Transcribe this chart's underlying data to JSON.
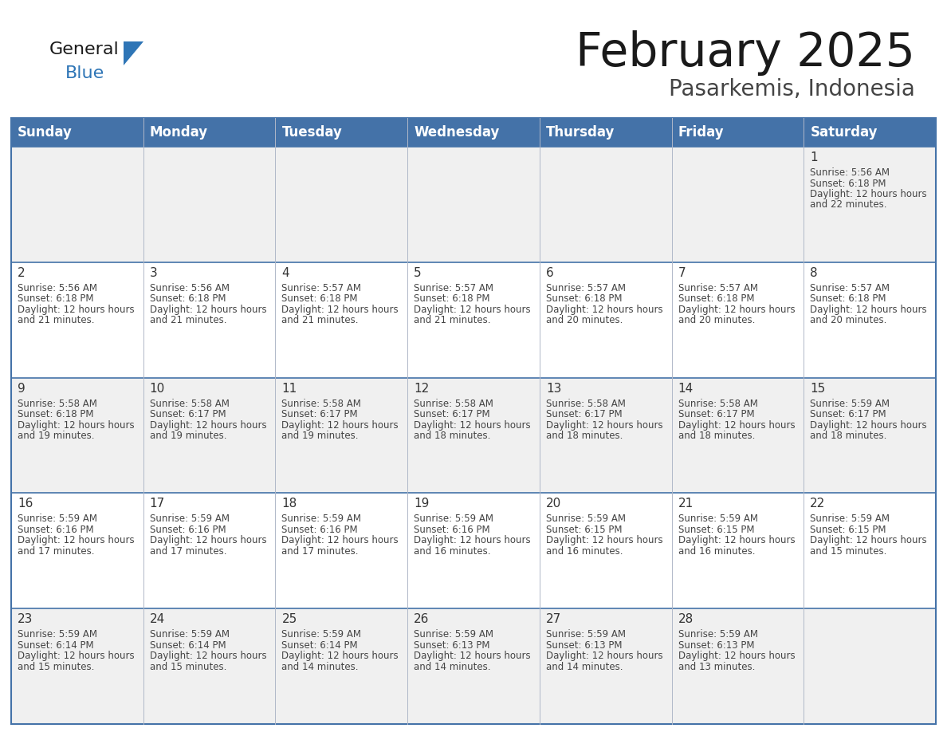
{
  "title": "February 2025",
  "subtitle": "Pasarkemis, Indonesia",
  "header_bg": "#4472a8",
  "header_text": "#ffffff",
  "day_names": [
    "Sunday",
    "Monday",
    "Tuesday",
    "Wednesday",
    "Thursday",
    "Friday",
    "Saturday"
  ],
  "row_bg_even": "#f0f0f0",
  "row_bg_odd": "#ffffff",
  "cell_border": "#4472a8",
  "date_color": "#333333",
  "info_color": "#444444",
  "logo_general_color": "#1a1a1a",
  "logo_blue_color": "#2e75b6",
  "calendar_data": [
    {
      "day": 1,
      "col": 6,
      "row": 0,
      "sunrise": "5:56 AM",
      "sunset": "6:18 PM",
      "daylight": "12 hours and 22 minutes"
    },
    {
      "day": 2,
      "col": 0,
      "row": 1,
      "sunrise": "5:56 AM",
      "sunset": "6:18 PM",
      "daylight": "12 hours and 21 minutes"
    },
    {
      "day": 3,
      "col": 1,
      "row": 1,
      "sunrise": "5:56 AM",
      "sunset": "6:18 PM",
      "daylight": "12 hours and 21 minutes"
    },
    {
      "day": 4,
      "col": 2,
      "row": 1,
      "sunrise": "5:57 AM",
      "sunset": "6:18 PM",
      "daylight": "12 hours and 21 minutes"
    },
    {
      "day": 5,
      "col": 3,
      "row": 1,
      "sunrise": "5:57 AM",
      "sunset": "6:18 PM",
      "daylight": "12 hours and 21 minutes"
    },
    {
      "day": 6,
      "col": 4,
      "row": 1,
      "sunrise": "5:57 AM",
      "sunset": "6:18 PM",
      "daylight": "12 hours and 20 minutes"
    },
    {
      "day": 7,
      "col": 5,
      "row": 1,
      "sunrise": "5:57 AM",
      "sunset": "6:18 PM",
      "daylight": "12 hours and 20 minutes"
    },
    {
      "day": 8,
      "col": 6,
      "row": 1,
      "sunrise": "5:57 AM",
      "sunset": "6:18 PM",
      "daylight": "12 hours and 20 minutes"
    },
    {
      "day": 9,
      "col": 0,
      "row": 2,
      "sunrise": "5:58 AM",
      "sunset": "6:18 PM",
      "daylight": "12 hours and 19 minutes"
    },
    {
      "day": 10,
      "col": 1,
      "row": 2,
      "sunrise": "5:58 AM",
      "sunset": "6:17 PM",
      "daylight": "12 hours and 19 minutes"
    },
    {
      "day": 11,
      "col": 2,
      "row": 2,
      "sunrise": "5:58 AM",
      "sunset": "6:17 PM",
      "daylight": "12 hours and 19 minutes"
    },
    {
      "day": 12,
      "col": 3,
      "row": 2,
      "sunrise": "5:58 AM",
      "sunset": "6:17 PM",
      "daylight": "12 hours and 18 minutes"
    },
    {
      "day": 13,
      "col": 4,
      "row": 2,
      "sunrise": "5:58 AM",
      "sunset": "6:17 PM",
      "daylight": "12 hours and 18 minutes"
    },
    {
      "day": 14,
      "col": 5,
      "row": 2,
      "sunrise": "5:58 AM",
      "sunset": "6:17 PM",
      "daylight": "12 hours and 18 minutes"
    },
    {
      "day": 15,
      "col": 6,
      "row": 2,
      "sunrise": "5:59 AM",
      "sunset": "6:17 PM",
      "daylight": "12 hours and 18 minutes"
    },
    {
      "day": 16,
      "col": 0,
      "row": 3,
      "sunrise": "5:59 AM",
      "sunset": "6:16 PM",
      "daylight": "12 hours and 17 minutes"
    },
    {
      "day": 17,
      "col": 1,
      "row": 3,
      "sunrise": "5:59 AM",
      "sunset": "6:16 PM",
      "daylight": "12 hours and 17 minutes"
    },
    {
      "day": 18,
      "col": 2,
      "row": 3,
      "sunrise": "5:59 AM",
      "sunset": "6:16 PM",
      "daylight": "12 hours and 17 minutes"
    },
    {
      "day": 19,
      "col": 3,
      "row": 3,
      "sunrise": "5:59 AM",
      "sunset": "6:16 PM",
      "daylight": "12 hours and 16 minutes"
    },
    {
      "day": 20,
      "col": 4,
      "row": 3,
      "sunrise": "5:59 AM",
      "sunset": "6:15 PM",
      "daylight": "12 hours and 16 minutes"
    },
    {
      "day": 21,
      "col": 5,
      "row": 3,
      "sunrise": "5:59 AM",
      "sunset": "6:15 PM",
      "daylight": "12 hours and 16 minutes"
    },
    {
      "day": 22,
      "col": 6,
      "row": 3,
      "sunrise": "5:59 AM",
      "sunset": "6:15 PM",
      "daylight": "12 hours and 15 minutes"
    },
    {
      "day": 23,
      "col": 0,
      "row": 4,
      "sunrise": "5:59 AM",
      "sunset": "6:14 PM",
      "daylight": "12 hours and 15 minutes"
    },
    {
      "day": 24,
      "col": 1,
      "row": 4,
      "sunrise": "5:59 AM",
      "sunset": "6:14 PM",
      "daylight": "12 hours and 15 minutes"
    },
    {
      "day": 25,
      "col": 2,
      "row": 4,
      "sunrise": "5:59 AM",
      "sunset": "6:14 PM",
      "daylight": "12 hours and 14 minutes"
    },
    {
      "day": 26,
      "col": 3,
      "row": 4,
      "sunrise": "5:59 AM",
      "sunset": "6:13 PM",
      "daylight": "12 hours and 14 minutes"
    },
    {
      "day": 27,
      "col": 4,
      "row": 4,
      "sunrise": "5:59 AM",
      "sunset": "6:13 PM",
      "daylight": "12 hours and 14 minutes"
    },
    {
      "day": 28,
      "col": 5,
      "row": 4,
      "sunrise": "5:59 AM",
      "sunset": "6:13 PM",
      "daylight": "12 hours and 13 minutes"
    }
  ]
}
